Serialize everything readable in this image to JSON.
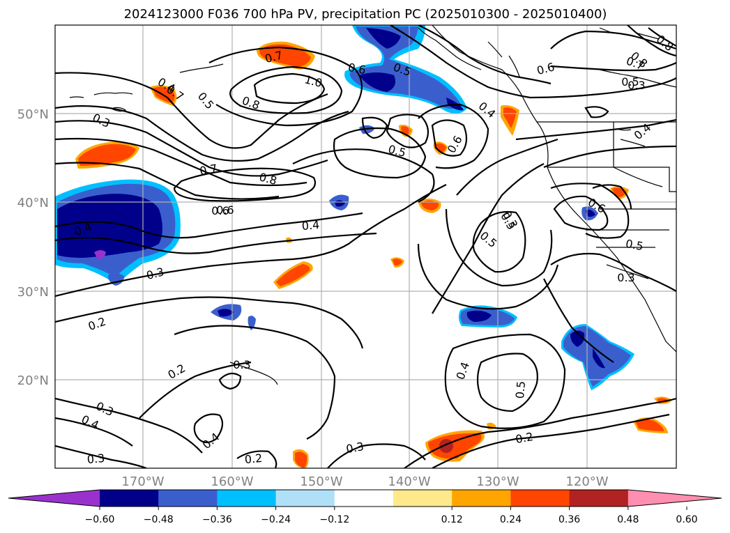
{
  "title": "2024123000 F036 700 hPa PV, precipitation PC (2025010300 - 2025010400)",
  "map": {
    "lon_labels": [
      "170°W",
      "160°W",
      "150°W",
      "140°W",
      "130°W",
      "120°W"
    ],
    "lat_labels": [
      "50°N",
      "40°N",
      "30°N",
      "20°N"
    ],
    "label_color": "#808080"
  },
  "contour_labels": [
    "0.7",
    "1.0",
    "0.8",
    "0.6",
    "0.5",
    "0.4",
    "0.5",
    "0.3",
    "0.5",
    "0.6",
    "0.4",
    "0.6",
    "0.7",
    "0.8",
    "0.5",
    "0.4",
    "0.8",
    "0.7",
    "0.6",
    "0.5",
    "0.4",
    "0.6",
    "0.5",
    "0.3",
    "0.7",
    "0.8",
    "0.6",
    "0.4",
    "0.3",
    "0.5",
    "0.4",
    "0.3",
    "0.2",
    "0.2",
    "0.3",
    "0.4",
    "0.5",
    "0.2",
    "0.3",
    "0.4",
    "0.3",
    "0.3",
    "0.2",
    "0.3"
  ],
  "colorbar": {
    "tick_labels": [
      "−0.60",
      "−0.48",
      "−0.36",
      "−0.24",
      "−0.12",
      "0.12",
      "0.24",
      "0.36",
      "0.48",
      "0.60"
    ],
    "colors": [
      "#9932cc",
      "#00008b",
      "#3a5fcd",
      "#00bfff",
      "#b0e0f8",
      "#ffffff",
      "#ffe98a",
      "#ffa500",
      "#ff4500",
      "#b22222",
      "#ff8fb0"
    ]
  }
}
